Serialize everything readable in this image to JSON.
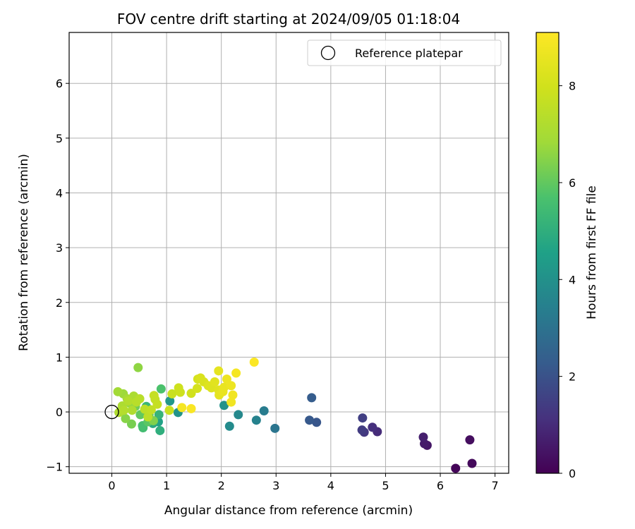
{
  "chart_data": {
    "type": "scatter",
    "title": "FOV centre drift starting at 2024/09/05 01:18:04",
    "xlabel": "Angular distance from reference (arcmin)",
    "ylabel": "Rotation from reference (arcmin)",
    "xlim": [
      -0.78,
      7.25
    ],
    "ylim": [
      -1.12,
      6.93
    ],
    "x_ticks": [
      0,
      1,
      2,
      3,
      4,
      5,
      6,
      7
    ],
    "y_ticks": [
      -1,
      0,
      1,
      2,
      3,
      4,
      5,
      6
    ],
    "grid": true,
    "legend": {
      "position": "top-right",
      "entries": [
        "Reference platepar"
      ]
    },
    "colormap": "viridis",
    "colorbar": {
      "label": "Hours from first FF file",
      "range": [
        0,
        9.1
      ],
      "ticks": [
        0,
        2,
        4,
        6,
        8
      ]
    },
    "reference_point": {
      "x": 0,
      "y": 0,
      "label": "Reference platepar"
    },
    "series": [
      {
        "values": [
          {
            "x": 6.28,
            "y": -1.03,
            "c": 0.1
          },
          {
            "x": 6.58,
            "y": -0.94,
            "c": 0.2
          },
          {
            "x": 6.54,
            "y": -0.51,
            "c": 0.3
          },
          {
            "x": 5.76,
            "y": -0.61,
            "c": 0.5
          },
          {
            "x": 5.71,
            "y": -0.58,
            "c": 0.6
          },
          {
            "x": 5.69,
            "y": -0.46,
            "c": 0.7
          },
          {
            "x": 4.85,
            "y": -0.36,
            "c": 1.0
          },
          {
            "x": 4.76,
            "y": -0.28,
            "c": 1.1
          },
          {
            "x": 4.61,
            "y": -0.37,
            "c": 1.3
          },
          {
            "x": 4.57,
            "y": -0.33,
            "c": 1.4
          },
          {
            "x": 4.58,
            "y": -0.11,
            "c": 1.5
          },
          {
            "x": 3.74,
            "y": -0.19,
            "c": 2.1
          },
          {
            "x": 3.61,
            "y": -0.15,
            "c": 2.2
          },
          {
            "x": 3.65,
            "y": 0.26,
            "c": 2.3
          },
          {
            "x": 2.98,
            "y": -0.3,
            "c": 3.1
          },
          {
            "x": 2.78,
            "y": 0.02,
            "c": 3.3
          },
          {
            "x": 2.64,
            "y": -0.15,
            "c": 3.5
          },
          {
            "x": 2.31,
            "y": -0.05,
            "c": 3.7
          },
          {
            "x": 2.15,
            "y": -0.26,
            "c": 3.8
          },
          {
            "x": 2.05,
            "y": 0.12,
            "c": 4.0
          },
          {
            "x": 1.21,
            "y": -0.01,
            "c": 4.1
          },
          {
            "x": 1.06,
            "y": 0.2,
            "c": 4.2
          },
          {
            "x": 0.85,
            "y": -0.18,
            "c": 4.6
          },
          {
            "x": 0.75,
            "y": -0.21,
            "c": 4.8
          },
          {
            "x": 0.88,
            "y": -0.34,
            "c": 5.0
          },
          {
            "x": 0.86,
            "y": -0.05,
            "c": 5.2
          },
          {
            "x": 0.63,
            "y": 0.1,
            "c": 5.3
          },
          {
            "x": 0.57,
            "y": -0.29,
            "c": 5.5
          },
          {
            "x": 0.56,
            "y": -0.25,
            "c": 5.6
          },
          {
            "x": 0.9,
            "y": 0.42,
            "c": 5.7
          },
          {
            "x": 0.66,
            "y": -0.18,
            "c": 5.9
          },
          {
            "x": 0.52,
            "y": -0.05,
            "c": 6.0
          },
          {
            "x": 0.68,
            "y": -0.05,
            "c": 6.1
          },
          {
            "x": 0.43,
            "y": 0.1,
            "c": 6.2
          },
          {
            "x": 0.36,
            "y": -0.22,
            "c": 6.3
          },
          {
            "x": 0.76,
            "y": -0.16,
            "c": 6.4
          },
          {
            "x": 0.25,
            "y": -0.12,
            "c": 6.5
          },
          {
            "x": 0.48,
            "y": 0.81,
            "c": 6.6
          },
          {
            "x": 0.16,
            "y": 0.02,
            "c": 6.6
          },
          {
            "x": 0.33,
            "y": 0.16,
            "c": 6.7
          },
          {
            "x": 0.21,
            "y": 0.33,
            "c": 6.8
          },
          {
            "x": 0.11,
            "y": 0.37,
            "c": 6.9
          },
          {
            "x": 0.28,
            "y": 0.24,
            "c": 7.0
          },
          {
            "x": 0.4,
            "y": 0.29,
            "c": 7.1
          },
          {
            "x": 0.19,
            "y": 0.11,
            "c": 7.1
          },
          {
            "x": 0.37,
            "y": 0.03,
            "c": 7.2
          },
          {
            "x": 0.13,
            "y": -0.01,
            "c": 7.2
          },
          {
            "x": 0.3,
            "y": 0.2,
            "c": 7.3
          },
          {
            "x": 0.22,
            "y": 0.03,
            "c": 7.3
          },
          {
            "x": 0.45,
            "y": 0.18,
            "c": 7.4
          },
          {
            "x": 0.51,
            "y": 0.24,
            "c": 7.4
          },
          {
            "x": 0.6,
            "y": 0.05,
            "c": 7.5
          },
          {
            "x": 0.66,
            "y": -0.09,
            "c": 7.5
          },
          {
            "x": 0.72,
            "y": 0.04,
            "c": 7.6
          },
          {
            "x": 0.79,
            "y": 0.23,
            "c": 7.6
          },
          {
            "x": 0.77,
            "y": 0.3,
            "c": 7.7
          },
          {
            "x": 0.83,
            "y": 0.14,
            "c": 7.7
          },
          {
            "x": 1.05,
            "y": 0.03,
            "c": 7.8
          },
          {
            "x": 1.1,
            "y": 0.33,
            "c": 7.8
          },
          {
            "x": 1.22,
            "y": 0.44,
            "c": 7.9
          },
          {
            "x": 1.25,
            "y": 0.36,
            "c": 7.9
          },
          {
            "x": 1.45,
            "y": 0.34,
            "c": 8.0
          },
          {
            "x": 1.56,
            "y": 0.43,
            "c": 8.1
          },
          {
            "x": 1.57,
            "y": 0.6,
            "c": 8.1
          },
          {
            "x": 1.62,
            "y": 0.62,
            "c": 8.2
          },
          {
            "x": 1.68,
            "y": 0.55,
            "c": 8.2
          },
          {
            "x": 1.76,
            "y": 0.48,
            "c": 8.3
          },
          {
            "x": 1.82,
            "y": 0.44,
            "c": 8.3
          },
          {
            "x": 1.88,
            "y": 0.55,
            "c": 8.4
          },
          {
            "x": 1.95,
            "y": 0.4,
            "c": 8.4
          },
          {
            "x": 1.96,
            "y": 0.31,
            "c": 8.5
          },
          {
            "x": 1.95,
            "y": 0.75,
            "c": 8.5
          },
          {
            "x": 2.03,
            "y": 0.37,
            "c": 8.6
          },
          {
            "x": 2.05,
            "y": 0.45,
            "c": 8.6
          },
          {
            "x": 2.1,
            "y": 0.6,
            "c": 8.7
          },
          {
            "x": 2.18,
            "y": 0.48,
            "c": 8.7
          },
          {
            "x": 2.21,
            "y": 0.31,
            "c": 8.8
          },
          {
            "x": 2.18,
            "y": 0.18,
            "c": 8.8
          },
          {
            "x": 2.27,
            "y": 0.71,
            "c": 8.9
          },
          {
            "x": 1.28,
            "y": 0.08,
            "c": 8.9
          },
          {
            "x": 1.45,
            "y": 0.06,
            "c": 9.0
          },
          {
            "x": 2.6,
            "y": 0.91,
            "c": 9.05
          }
        ]
      }
    ]
  }
}
